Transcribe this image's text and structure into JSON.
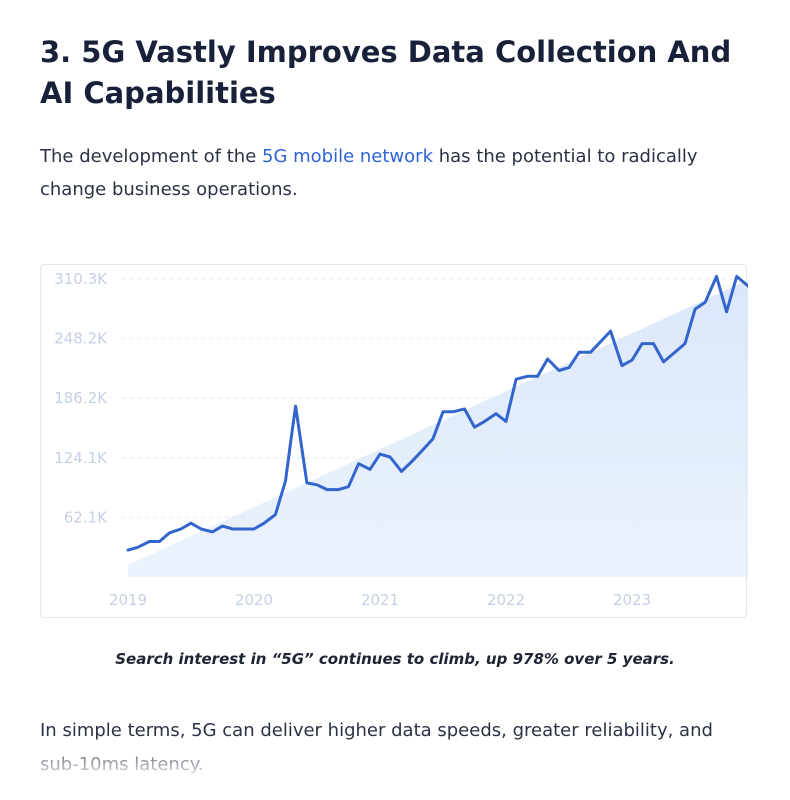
{
  "article": {
    "heading": "3. 5G Vastly Improves Data Collection And AI Capabilities",
    "intro_before_link": "The development of the ",
    "intro_link": "5G mobile network",
    "intro_after_link": " has the potential to radically change business operations.",
    "caption": "Search interest in “5G” continues to climb, up 978% over 5 years.",
    "body_text": "In simple terms, 5G can deliver higher data speeds, greater reliability, and sub-10ms latency."
  },
  "colors": {
    "line": "#3366cc",
    "area_fill": "#dbe8fa",
    "tick_label": "#c4d0e4",
    "grid": "#e3e7ee",
    "link": "#2d63d6"
  },
  "chart_data": {
    "type": "line",
    "title": "",
    "xlabel": "",
    "ylabel": "",
    "ylim": [
      0,
      310300
    ],
    "y_ticks": [
      62100,
      124100,
      186200,
      248200,
      310300
    ],
    "y_tick_labels": [
      "62.1K",
      "124.1K",
      "186.2K",
      "248.2K",
      "310.3K"
    ],
    "x_range": [
      2019.0,
      2023.92
    ],
    "x_ticks": [
      2019,
      2020,
      2021,
      2022,
      2023
    ],
    "x_tick_labels": [
      "2019",
      "2020",
      "2021",
      "2022",
      "2023"
    ],
    "grid": "horizontal dashed",
    "legend": "none",
    "series": [
      {
        "name": "",
        "x": [
          2019.0,
          2019.08,
          2019.17,
          2019.25,
          2019.33,
          2019.42,
          2019.5,
          2019.58,
          2019.67,
          2019.75,
          2019.83,
          2019.92,
          2020.0,
          2020.08,
          2020.17,
          2020.25,
          2020.29,
          2020.33,
          2020.42,
          2020.5,
          2020.58,
          2020.67,
          2020.75,
          2020.83,
          2020.92,
          2021.0,
          2021.08,
          2021.17,
          2021.25,
          2021.33,
          2021.42,
          2021.5,
          2021.58,
          2021.67,
          2021.75,
          2021.83,
          2021.92,
          2022.0,
          2022.08,
          2022.17,
          2022.25,
          2022.33,
          2022.42,
          2022.5,
          2022.58,
          2022.67,
          2022.75,
          2022.83,
          2022.92,
          2023.0,
          2023.08,
          2023.17,
          2023.25,
          2023.33,
          2023.42,
          2023.5,
          2023.58,
          2023.67,
          2023.75,
          2023.83,
          2023.92
        ],
        "values": [
          28000,
          31000,
          37000,
          37000,
          46000,
          50000,
          56000,
          50000,
          47000,
          53000,
          50000,
          50000,
          50000,
          56000,
          65000,
          100000,
          140000,
          178000,
          98000,
          96000,
          91000,
          91000,
          94000,
          118000,
          112000,
          128000,
          125000,
          110000,
          120000,
          131000,
          144000,
          172000,
          172000,
          175000,
          156000,
          162000,
          170000,
          162000,
          206000,
          209000,
          209000,
          227000,
          215000,
          218000,
          234000,
          234000,
          245000,
          256000,
          220000,
          226000,
          243000,
          243000,
          224000,
          233000,
          243000,
          279000,
          286000,
          313000,
          276000,
          313000,
          303000
        ]
      }
    ]
  }
}
